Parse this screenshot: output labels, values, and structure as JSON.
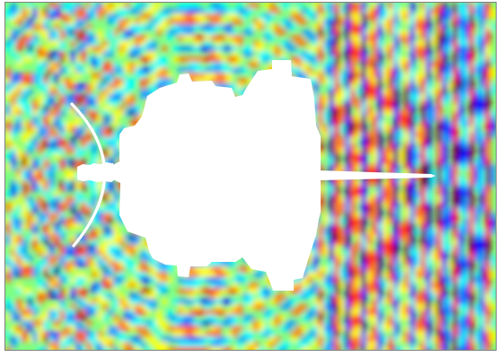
{
  "figure": {
    "colormap": [
      "#00008f",
      "#0000ff",
      "#00a0ff",
      "#00ffff",
      "#80ff80",
      "#ffff00",
      "#ff8000",
      "#ff0000",
      "#800000"
    ],
    "background": "#80ff80",
    "obstacle_color": "#ffffff",
    "border_color": "#7f7f7f",
    "reflector_color": "#ffffff"
  }
}
